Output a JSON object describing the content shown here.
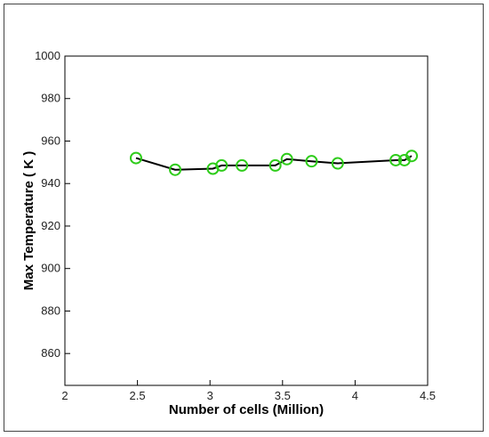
{
  "chart_data": {
    "type": "line",
    "title": "",
    "xlabel": "Number of cells (Million)",
    "ylabel": "Max Temperature ( K )",
    "xlim": [
      2,
      4.5
    ],
    "ylim": [
      845,
      1000
    ],
    "xticks": [
      2,
      2.5,
      3,
      3.5,
      4,
      4.5
    ],
    "xtick_labels": [
      "2",
      "2.5",
      "3",
      "3.5",
      "4",
      "4.5"
    ],
    "yticks": [
      860,
      880,
      900,
      920,
      940,
      960,
      980,
      1000
    ],
    "ytick_labels": [
      "860",
      "880",
      "900",
      "920",
      "940",
      "960",
      "980",
      "1000"
    ],
    "grid": false,
    "series": [
      {
        "line_color": "#000000",
        "marker": "circle",
        "marker_color": "#2ecc1a",
        "x": [
          2.49,
          2.76,
          3.02,
          3.08,
          3.22,
          3.45,
          3.53,
          3.7,
          3.88,
          4.28,
          4.34,
          4.39
        ],
        "y": [
          952,
          946.5,
          947,
          948.5,
          948.5,
          948.5,
          951.5,
          950.5,
          949.5,
          951,
          951,
          953
        ]
      }
    ]
  }
}
